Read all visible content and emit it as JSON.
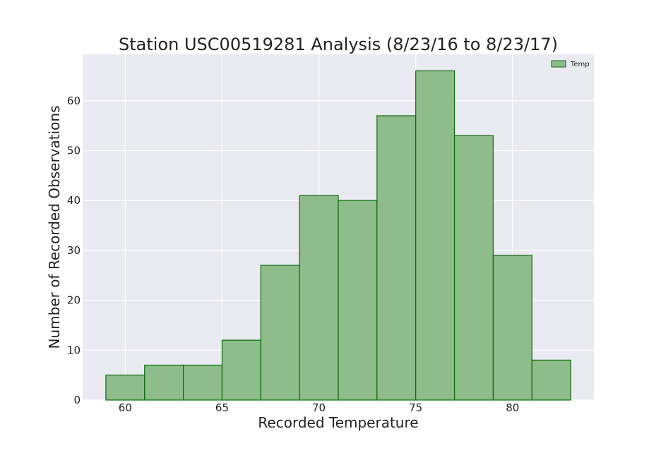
{
  "chart_data": {
    "type": "bar",
    "subtype": "histogram",
    "title": "Station USC00519281 Analysis (8/23/16 to 8/23/17)",
    "xlabel": "Recorded Temperature",
    "ylabel": "Number of Recorded Observations",
    "bin_edges": [
      59,
      61,
      63,
      65,
      67,
      69,
      71,
      73,
      75,
      77,
      79,
      81,
      83
    ],
    "values": [
      5,
      7,
      7,
      12,
      27,
      41,
      40,
      57,
      66,
      53,
      29,
      8
    ],
    "series": [
      {
        "name": "Temp",
        "values": [
          5,
          7,
          7,
          12,
          27,
          41,
          40,
          57,
          66,
          53,
          29,
          8
        ]
      }
    ],
    "xlim": [
      57.8,
      84.2
    ],
    "ylim": [
      0,
      69.3
    ],
    "xticks": [
      60,
      65,
      70,
      75,
      80
    ],
    "yticks": [
      0,
      10,
      20,
      30,
      40,
      50,
      60
    ],
    "grid": true,
    "legend_position": "top-right",
    "colors": {
      "bar_fill": "#8fbc8b",
      "bar_edge": "#0a6b0a",
      "plot_background": "#eaeaf2",
      "grid": "#ffffff",
      "text": "#222222"
    }
  }
}
